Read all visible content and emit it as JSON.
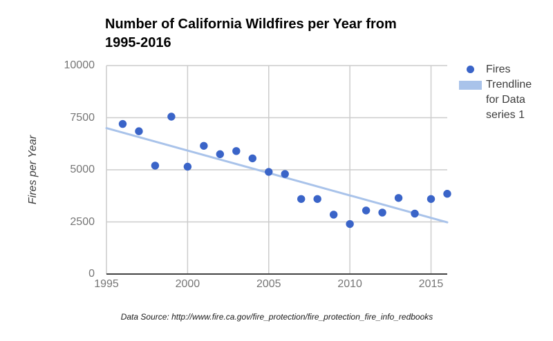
{
  "header": {
    "title_line1": "Number of California Wildfires per Year from",
    "title_line2": "1995-2016"
  },
  "axes": {
    "y_title": "Fires per Year"
  },
  "legend": {
    "items": [
      {
        "name": "fires-series",
        "label": "Fires",
        "marker": "dot",
        "color": "#3a64c8"
      },
      {
        "name": "trendline-series",
        "label": "Trendline for Data series 1",
        "marker": "swatch",
        "color": "#a9c3ea"
      }
    ]
  },
  "footer": {
    "source_text": "Data Source: http://www.fire.ca.gov/fire_protection/fire_protection_fire_info_redbooks"
  },
  "chart_data": {
    "type": "scatter",
    "title": "Number of California Wildfires per Year from 1995-2016",
    "xlabel": "",
    "ylabel": "Fires per Year",
    "series_name": "Fires",
    "x": [
      1996,
      1997,
      1998,
      1999,
      2000,
      2001,
      2002,
      2003,
      2004,
      2005,
      2006,
      2007,
      2008,
      2009,
      2010,
      2011,
      2012,
      2013,
      2014,
      2015,
      2016
    ],
    "y": [
      7200,
      6850,
      5200,
      7550,
      5150,
      6150,
      5750,
      5900,
      5550,
      4900,
      4800,
      3600,
      3600,
      2850,
      2400,
      3050,
      2950,
      3650,
      2900,
      3600,
      3850
    ],
    "trendline": {
      "label": "Trendline for Data series 1",
      "x": [
        1995,
        2016
      ],
      "y": [
        7000,
        2480
      ]
    },
    "xlim": [
      1995,
      2016
    ],
    "ylim": [
      0,
      10000
    ],
    "xticks": [
      1995,
      2000,
      2005,
      2010,
      2015
    ],
    "yticks": [
      0,
      2500,
      5000,
      7500,
      10000
    ],
    "grid": true,
    "legend_position": "right",
    "colors": {
      "point": "#3a64c8",
      "trendline": "#a9c3ea",
      "grid": "#cccccc",
      "axis": "#424242",
      "tick_label": "#757575",
      "background": "#ffffff"
    }
  }
}
